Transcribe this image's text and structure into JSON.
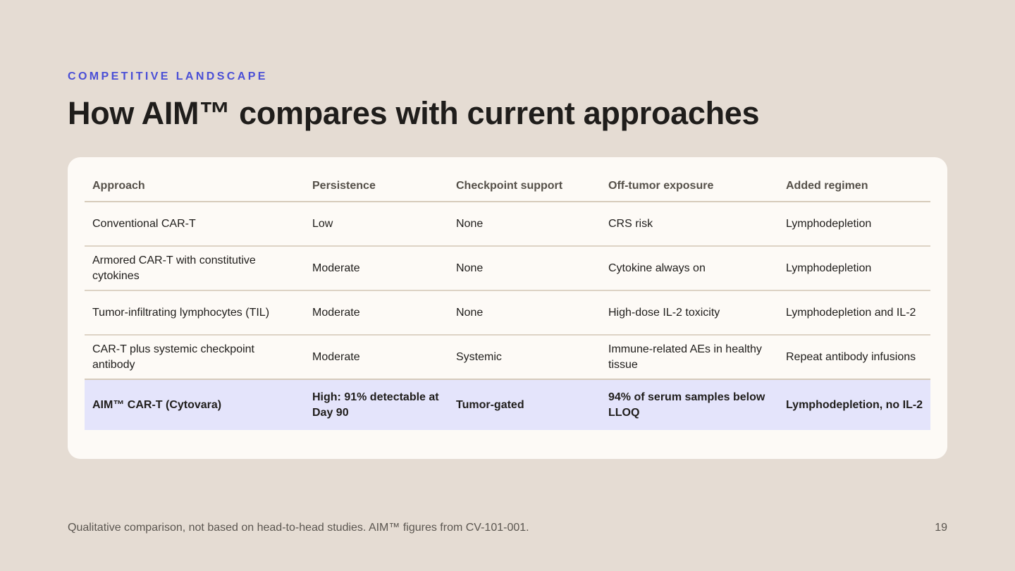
{
  "eyebrow": "COMPETITIVE LANDSCAPE",
  "title": "How AIM™ compares with current approaches",
  "table": {
    "headers": [
      "Approach",
      "Persistence",
      "Checkpoint support",
      "Off-tumor exposure",
      "Added regimen"
    ],
    "rows": [
      [
        "Conventional CAR-T",
        "Low",
        "None",
        "CRS risk",
        "Lymphodepletion"
      ],
      [
        "Armored CAR-T with constitutive cytokines",
        "Moderate",
        "None",
        "Cytokine always on",
        "Lymphodepletion"
      ],
      [
        "Tumor-infiltrating lymphocytes (TIL)",
        "Moderate",
        "None",
        "High-dose IL-2 toxicity",
        "Lymphodepletion and IL-2"
      ],
      [
        "CAR-T plus systemic checkpoint antibody",
        "Moderate",
        "Systemic",
        "Immune-related AEs in healthy tissue",
        "Repeat antibody infusions"
      ],
      [
        "AIM™ CAR-T (Cytovara)",
        "High: 91% detectable at Day 90",
        "Tumor-gated",
        "94% of serum samples below LLOQ",
        "Lymphodepletion, no IL-2"
      ]
    ],
    "highlight_row": 4
  },
  "footnote": "Qualitative comparison, not based on head-to-head studies. AIM™ figures from CV-101-001.",
  "page_number": "19",
  "colors": {
    "background": "#e5dcd3",
    "card": "#fdfaf6",
    "accent": "#4a4fd6",
    "highlight_row": "#e4e4fb"
  }
}
